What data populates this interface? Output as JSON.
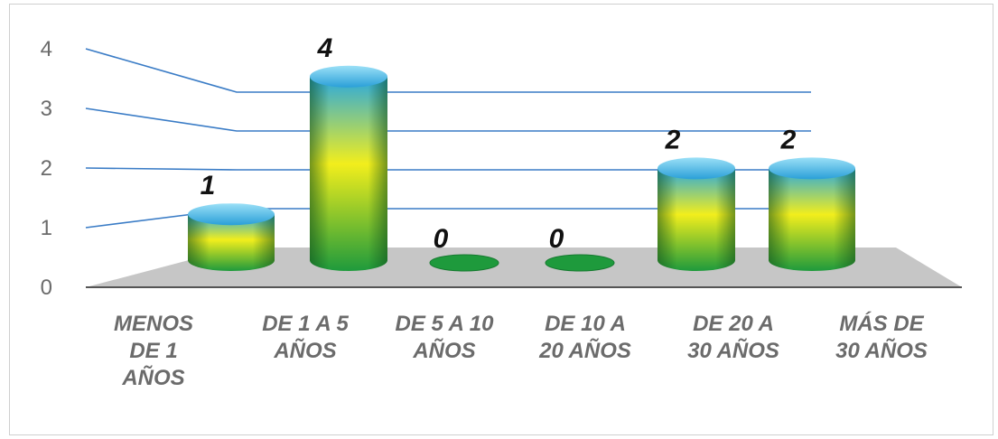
{
  "chart_data": {
    "type": "bar",
    "categories": [
      "MENOS\nDE 1\nAÑOS",
      "DE 1 A 5\nAÑOS",
      "DE 5 A 10\nAÑOS",
      "DE 10 A\n20 AÑOS",
      "DE 20 A\n30 AÑOS",
      "MÁS DE\n30 AÑOS"
    ],
    "values": [
      1,
      4,
      0,
      0,
      2,
      2
    ],
    "data_labels": [
      "1",
      "4",
      "0",
      "0",
      "2",
      "2"
    ],
    "y_ticks": [
      "0",
      "1",
      "2",
      "3",
      "4"
    ],
    "ylim": [
      0,
      4
    ],
    "grid": true,
    "style": "3d-cylinder",
    "colors": {
      "top": "#29a8e0",
      "middle": "#f2ee1c",
      "bottom": "#1e9a3c",
      "floor": "#c6c6c6",
      "gridline": "#3a7cc6"
    }
  }
}
